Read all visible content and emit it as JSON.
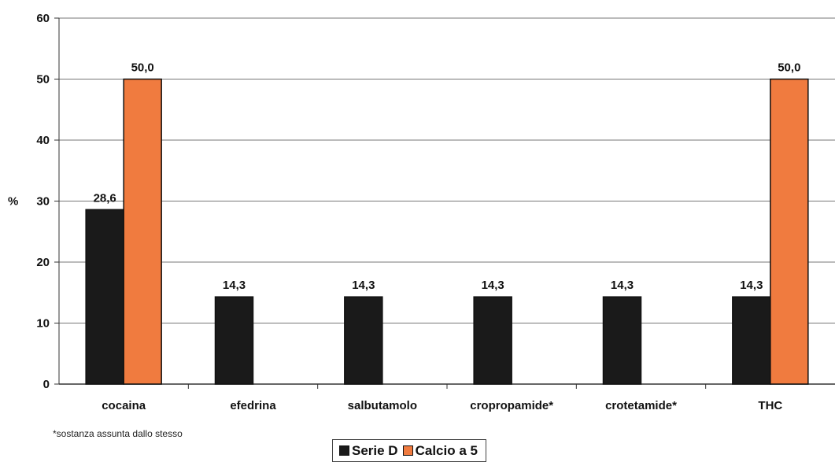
{
  "chart_data": {
    "type": "bar",
    "categories": [
      "cocaina",
      "efedrina",
      "salbutamolo",
      "cropropamide*",
      "crotetamide*",
      "THC"
    ],
    "series": [
      {
        "name": "Serie D",
        "color": "#1a1a1a",
        "values": [
          28.6,
          14.3,
          14.3,
          14.3,
          14.3,
          14.3
        ]
      },
      {
        "name": "Calcio a 5",
        "color": "#f07b3f",
        "values": [
          50.0,
          null,
          null,
          null,
          null,
          50.0
        ]
      }
    ],
    "value_labels": {
      "Serie D": [
        "28,6",
        "14,3",
        "14,3",
        "14,3",
        "14,3",
        "14,3"
      ],
      "Calcio a 5": [
        "50,0",
        null,
        null,
        null,
        null,
        "50,0"
      ]
    },
    "title": "",
    "xlabel": "",
    "ylabel": "%",
    "ylim": [
      0,
      60
    ],
    "yticks": [
      0,
      10,
      20,
      30,
      40,
      50,
      60
    ],
    "grid": true,
    "legend_position": "bottom",
    "note": "*sostanza assunta dallo stesso"
  }
}
